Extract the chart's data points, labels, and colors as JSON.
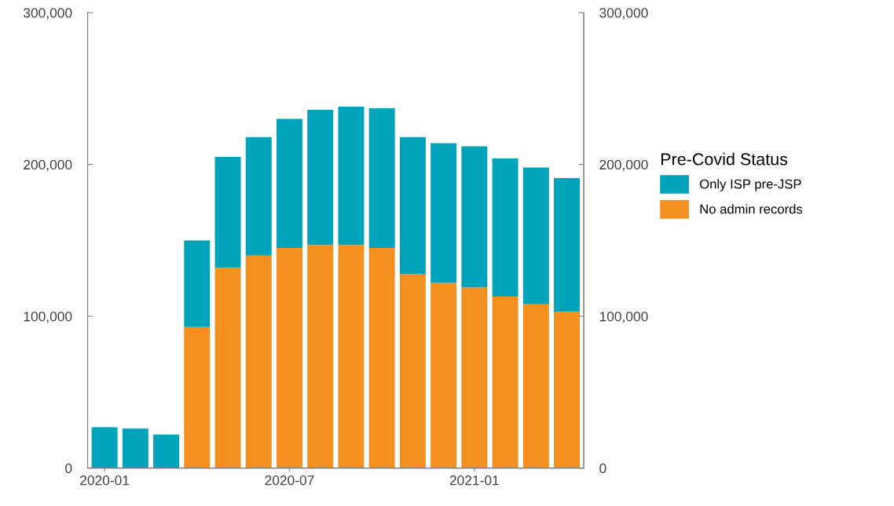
{
  "chart_data": {
    "type": "bar",
    "stacked": true,
    "categories": [
      "2020-01",
      null,
      null,
      null,
      null,
      null,
      "2020-07",
      null,
      null,
      null,
      null,
      null,
      "2021-01",
      null,
      null,
      null
    ],
    "series": [
      {
        "name": "No admin records",
        "color": "#f39020",
        "values": [
          0,
          0,
          0,
          93000,
          132000,
          140000,
          145000,
          147000,
          147000,
          145000,
          128000,
          122000,
          119000,
          113000,
          108000,
          103000
        ]
      },
      {
        "name": "Only ISP pre-JSP",
        "color": "#00a3b9",
        "values": [
          27000,
          26000,
          22000,
          57000,
          73000,
          78000,
          85000,
          89000,
          91000,
          92000,
          90000,
          92000,
          93000,
          91000,
          90000,
          88000
        ]
      }
    ],
    "ylim": [
      0,
      300000
    ],
    "yticks": [
      {
        "value": 0,
        "label": "0"
      },
      {
        "value": 100000,
        "label": "100,000"
      },
      {
        "value": 200000,
        "label": "200,000"
      },
      {
        "value": 300000,
        "label": "300,000"
      }
    ],
    "y2lim": [
      0,
      300000
    ],
    "y2ticks": [
      {
        "value": 0,
        "label": "0"
      },
      {
        "value": 100000,
        "label": "100,000"
      },
      {
        "value": 200000,
        "label": "200,000"
      },
      {
        "value": 300000,
        "label": "300,000"
      }
    ],
    "legend": "right",
    "legend_title": "Pre-Covid Status",
    "grid": false
  }
}
